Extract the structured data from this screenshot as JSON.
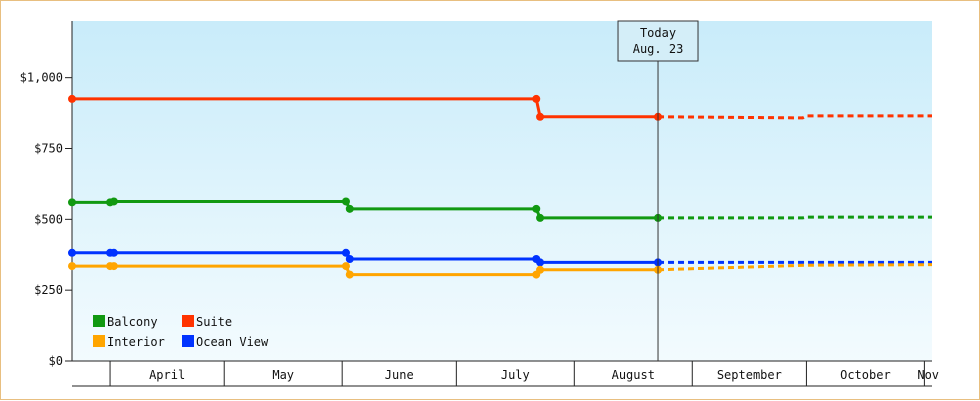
{
  "chart_data": {
    "type": "line",
    "title": "",
    "xlabel": "",
    "ylabel": "",
    "x_range": [
      "2024-03-22",
      "2024-11-03"
    ],
    "ylim": [
      0,
      1200
    ],
    "y_ticks": [
      0,
      250,
      500,
      750,
      1000
    ],
    "y_tick_labels": [
      "$0",
      "$250",
      "$500",
      "$750",
      "$1,000"
    ],
    "months": [
      {
        "label": "April",
        "start": "2024-04-01",
        "end": "2024-05-01"
      },
      {
        "label": "May",
        "start": "2024-05-01",
        "end": "2024-06-01"
      },
      {
        "label": "June",
        "start": "2024-06-01",
        "end": "2024-07-01"
      },
      {
        "label": "July",
        "start": "2024-07-01",
        "end": "2024-08-01"
      },
      {
        "label": "August",
        "start": "2024-08-01",
        "end": "2024-09-01"
      },
      {
        "label": "September",
        "start": "2024-09-01",
        "end": "2024-10-01"
      },
      {
        "label": "October",
        "start": "2024-10-01",
        "end": "2024-11-01"
      },
      {
        "label": "Nov",
        "start": "2024-11-01",
        "end": "2024-11-03"
      }
    ],
    "today": {
      "line1": "Today",
      "line2": "Aug. 23",
      "date": "2024-08-23"
    },
    "legend_position": "bottom-left",
    "series": [
      {
        "name": "Suite",
        "color": "#ff3300",
        "history": [
          {
            "x": "2024-03-22",
            "y": 925
          },
          {
            "x": "2024-07-22",
            "y": 925
          },
          {
            "x": "2024-07-23",
            "y": 862
          },
          {
            "x": "2024-08-23",
            "y": 862
          }
        ],
        "forecast": [
          {
            "x": "2024-08-23",
            "y": 862
          },
          {
            "x": "2024-09-30",
            "y": 858
          },
          {
            "x": "2024-10-01",
            "y": 865
          },
          {
            "x": "2024-11-03",
            "y": 865
          }
        ]
      },
      {
        "name": "Balcony",
        "color": "#119911",
        "history": [
          {
            "x": "2024-03-22",
            "y": 560
          },
          {
            "x": "2024-04-01",
            "y": 560
          },
          {
            "x": "2024-04-02",
            "y": 563
          },
          {
            "x": "2024-06-02",
            "y": 563
          },
          {
            "x": "2024-06-03",
            "y": 537
          },
          {
            "x": "2024-07-22",
            "y": 537
          },
          {
            "x": "2024-07-23",
            "y": 505
          },
          {
            "x": "2024-08-23",
            "y": 505
          }
        ],
        "forecast": [
          {
            "x": "2024-08-23",
            "y": 505
          },
          {
            "x": "2024-09-30",
            "y": 505
          },
          {
            "x": "2024-10-01",
            "y": 508
          },
          {
            "x": "2024-11-03",
            "y": 508
          }
        ]
      },
      {
        "name": "Ocean View",
        "color": "#0033ff",
        "history": [
          {
            "x": "2024-03-22",
            "y": 382
          },
          {
            "x": "2024-04-01",
            "y": 382
          },
          {
            "x": "2024-04-02",
            "y": 382
          },
          {
            "x": "2024-06-02",
            "y": 382
          },
          {
            "x": "2024-06-03",
            "y": 360
          },
          {
            "x": "2024-07-22",
            "y": 360
          },
          {
            "x": "2024-07-23",
            "y": 348
          },
          {
            "x": "2024-08-23",
            "y": 348
          }
        ],
        "forecast": [
          {
            "x": "2024-08-23",
            "y": 348
          },
          {
            "x": "2024-11-03",
            "y": 348
          }
        ]
      },
      {
        "name": "Interior",
        "color": "#ffa500",
        "history": [
          {
            "x": "2024-03-22",
            "y": 335
          },
          {
            "x": "2024-04-01",
            "y": 335
          },
          {
            "x": "2024-04-02",
            "y": 335
          },
          {
            "x": "2024-06-02",
            "y": 335
          },
          {
            "x": "2024-06-03",
            "y": 305
          },
          {
            "x": "2024-07-22",
            "y": 305
          },
          {
            "x": "2024-07-23",
            "y": 322
          },
          {
            "x": "2024-08-23",
            "y": 322
          }
        ],
        "forecast": [
          {
            "x": "2024-08-23",
            "y": 322
          },
          {
            "x": "2024-10-01",
            "y": 338
          },
          {
            "x": "2024-11-03",
            "y": 340
          }
        ]
      }
    ],
    "legend_order": [
      "Balcony",
      "Suite",
      "Interior",
      "Ocean View"
    ]
  }
}
